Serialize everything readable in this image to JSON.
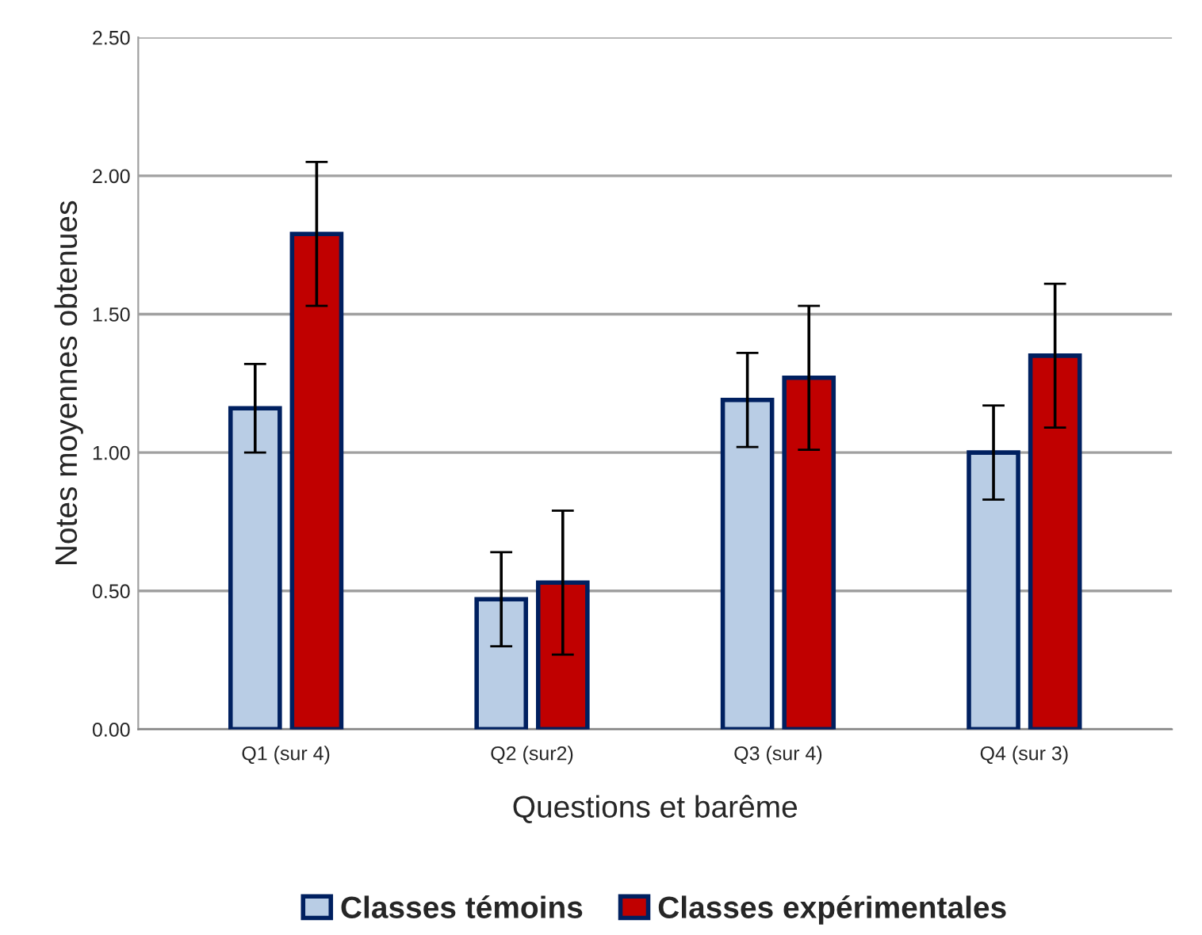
{
  "chart_data": {
    "type": "bar",
    "xlabel": "Questions et barême",
    "ylabel": "Notes moyennes obtenues",
    "categories": [
      "Q1 (sur 4)",
      "Q2 (sur2)",
      "Q3 (sur 4)",
      "Q4 (sur 3)"
    ],
    "series": [
      {
        "name": "Classes témoins",
        "color": "#b9cde5",
        "values": [
          1.16,
          0.47,
          1.19,
          1.0
        ],
        "errors": [
          0.16,
          0.17,
          0.17,
          0.17
        ]
      },
      {
        "name": "Classes expérimentales",
        "color": "#c00000",
        "values": [
          1.79,
          0.53,
          1.27,
          1.35
        ],
        "errors": [
          0.26,
          0.26,
          0.26,
          0.26
        ]
      }
    ],
    "ylim": [
      0,
      2.5
    ],
    "yticks": [
      {
        "value": 0,
        "label": "0.00"
      },
      {
        "value": 0.5,
        "label": "0.50"
      },
      {
        "value": 1,
        "label": "1.00"
      },
      {
        "value": 1.5,
        "label": "1.50"
      },
      {
        "value": 2,
        "label": "2.00"
      },
      {
        "value": 2.5,
        "label": "2.50"
      }
    ],
    "grid": "y",
    "legend": "bottom"
  }
}
